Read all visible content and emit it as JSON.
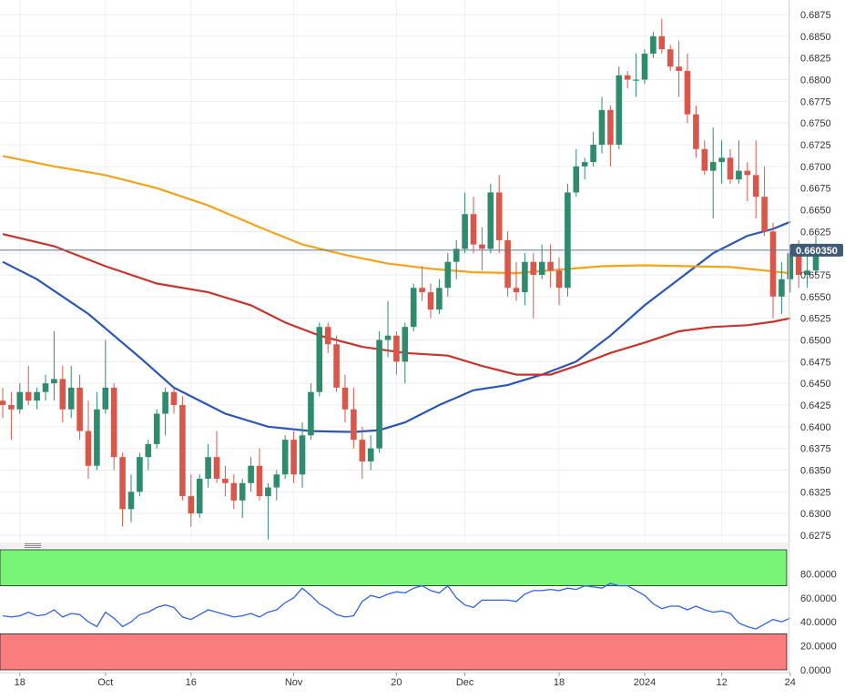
{
  "chart_data": [
    {
      "type": "candlestick",
      "title": "",
      "xlabel": "",
      "ylabel": "",
      "ylim": [
        0.6265,
        0.6885
      ],
      "y_ticks": [
        0.6275,
        0.63,
        0.6325,
        0.635,
        0.6375,
        0.64,
        0.6425,
        0.645,
        0.6475,
        0.65,
        0.6525,
        0.655,
        0.6575,
        0.66,
        0.6625,
        0.665,
        0.6675,
        0.67,
        0.6725,
        0.675,
        0.6775,
        0.68,
        0.6825,
        0.685,
        0.6875
      ],
      "y_tick_labels": [
        "0.6275",
        "0.6300",
        "0.6325",
        "0.6350",
        "0.6375",
        "0.6400",
        "0.6425",
        "0.6450",
        "0.6475",
        "0.6500",
        "0.6525",
        "0.6550",
        "0.6575",
        "0.6600",
        "0.6625",
        "0.6650",
        "0.6675",
        "0.6700",
        "0.6725",
        "0.6750",
        "0.6775",
        "0.6800",
        "0.6825",
        "0.6850",
        "0.6875"
      ],
      "x_tick_labels": [
        {
          "label": "18",
          "bar": 2
        },
        {
          "label": "Oct",
          "bar": 12
        },
        {
          "label": "16",
          "bar": 22
        },
        {
          "label": "Nov",
          "bar": 34
        },
        {
          "label": "20",
          "bar": 46
        },
        {
          "label": "Dec",
          "bar": 54
        },
        {
          "label": "18",
          "bar": 65
        },
        {
          "label": "2024",
          "bar": 75
        },
        {
          "label": "12",
          "bar": 84
        },
        {
          "label": "24",
          "bar": 92
        }
      ],
      "current_price_label": "0.660350",
      "current_price": 0.66035,
      "colors": {
        "up": "#2e8b6e",
        "down": "#d9574a",
        "sma1": "#2a56b8",
        "sma2": "#c9332c",
        "sma3": "#f5a21b",
        "price_line": "#5a7a96"
      },
      "candles": [
        [
          0.643,
          0.6445,
          0.641,
          0.6425
        ],
        [
          0.6425,
          0.644,
          0.6385,
          0.642
        ],
        [
          0.642,
          0.645,
          0.6415,
          0.644
        ],
        [
          0.644,
          0.647,
          0.6425,
          0.643
        ],
        [
          0.643,
          0.6445,
          0.642,
          0.644
        ],
        [
          0.644,
          0.646,
          0.643,
          0.645
        ],
        [
          0.645,
          0.651,
          0.643,
          0.6455
        ],
        [
          0.6455,
          0.647,
          0.6405,
          0.642
        ],
        [
          0.642,
          0.647,
          0.641,
          0.6445
        ],
        [
          0.6445,
          0.646,
          0.6385,
          0.6395
        ],
        [
          0.6395,
          0.643,
          0.634,
          0.6355
        ],
        [
          0.6355,
          0.644,
          0.635,
          0.642
        ],
        [
          0.642,
          0.65,
          0.6415,
          0.6445
        ],
        [
          0.6445,
          0.645,
          0.635,
          0.6365
        ],
        [
          0.6365,
          0.637,
          0.6285,
          0.6305
        ],
        [
          0.6305,
          0.6345,
          0.629,
          0.6325
        ],
        [
          0.6325,
          0.637,
          0.632,
          0.6365
        ],
        [
          0.6365,
          0.6385,
          0.635,
          0.638
        ],
        [
          0.638,
          0.642,
          0.6375,
          0.6415
        ],
        [
          0.6415,
          0.6445,
          0.639,
          0.644
        ],
        [
          0.644,
          0.6445,
          0.6415,
          0.6425
        ],
        [
          0.6425,
          0.6435,
          0.6315,
          0.632
        ],
        [
          0.632,
          0.6345,
          0.6285,
          0.63
        ],
        [
          0.63,
          0.6345,
          0.6295,
          0.634
        ],
        [
          0.634,
          0.638,
          0.633,
          0.6365
        ],
        [
          0.6365,
          0.6395,
          0.6335,
          0.634
        ],
        [
          0.634,
          0.6355,
          0.632,
          0.6335
        ],
        [
          0.6335,
          0.6345,
          0.6305,
          0.6315
        ],
        [
          0.6315,
          0.634,
          0.6295,
          0.6335
        ],
        [
          0.6335,
          0.6365,
          0.6325,
          0.6355
        ],
        [
          0.6355,
          0.6375,
          0.6315,
          0.632
        ],
        [
          0.632,
          0.6335,
          0.627,
          0.633
        ],
        [
          0.633,
          0.635,
          0.6315,
          0.6345
        ],
        [
          0.6345,
          0.639,
          0.634,
          0.6385
        ],
        [
          0.6385,
          0.6395,
          0.6335,
          0.6345
        ],
        [
          0.6345,
          0.6405,
          0.633,
          0.639
        ],
        [
          0.639,
          0.645,
          0.6385,
          0.644
        ],
        [
          0.644,
          0.652,
          0.6435,
          0.6515
        ],
        [
          0.6515,
          0.652,
          0.6485,
          0.6495
        ],
        [
          0.6495,
          0.6505,
          0.644,
          0.6445
        ],
        [
          0.6445,
          0.646,
          0.6405,
          0.642
        ],
        [
          0.642,
          0.6445,
          0.6375,
          0.6385
        ],
        [
          0.6385,
          0.64,
          0.634,
          0.636
        ],
        [
          0.636,
          0.639,
          0.635,
          0.6375
        ],
        [
          0.6375,
          0.651,
          0.637,
          0.65
        ],
        [
          0.65,
          0.6545,
          0.648,
          0.6505
        ],
        [
          0.6505,
          0.651,
          0.646,
          0.6475
        ],
        [
          0.6475,
          0.652,
          0.645,
          0.6515
        ],
        [
          0.6515,
          0.6565,
          0.651,
          0.656
        ],
        [
          0.656,
          0.6585,
          0.6545,
          0.6555
        ],
        [
          0.6555,
          0.6565,
          0.6525,
          0.6535
        ],
        [
          0.6535,
          0.657,
          0.653,
          0.656
        ],
        [
          0.656,
          0.66,
          0.655,
          0.659
        ],
        [
          0.659,
          0.6615,
          0.657,
          0.6605
        ],
        [
          0.6605,
          0.667,
          0.66,
          0.6645
        ],
        [
          0.6645,
          0.6665,
          0.66,
          0.661
        ],
        [
          0.661,
          0.663,
          0.658,
          0.6605
        ],
        [
          0.6605,
          0.668,
          0.66,
          0.667
        ],
        [
          0.667,
          0.669,
          0.66,
          0.6615
        ],
        [
          0.6615,
          0.6625,
          0.655,
          0.656
        ],
        [
          0.656,
          0.659,
          0.6545,
          0.6555
        ],
        [
          0.6555,
          0.66,
          0.654,
          0.659
        ],
        [
          0.659,
          0.66,
          0.6525,
          0.6575
        ],
        [
          0.6575,
          0.661,
          0.657,
          0.659
        ],
        [
          0.659,
          0.661,
          0.656,
          0.658
        ],
        [
          0.658,
          0.6595,
          0.654,
          0.656
        ],
        [
          0.656,
          0.668,
          0.655,
          0.667
        ],
        [
          0.667,
          0.672,
          0.6665,
          0.67
        ],
        [
          0.67,
          0.671,
          0.6685,
          0.6705
        ],
        [
          0.6705,
          0.674,
          0.67,
          0.6725
        ],
        [
          0.6725,
          0.678,
          0.6715,
          0.6765
        ],
        [
          0.6765,
          0.677,
          0.67,
          0.6725
        ],
        [
          0.6725,
          0.6815,
          0.672,
          0.6805
        ],
        [
          0.6805,
          0.681,
          0.679,
          0.68
        ],
        [
          0.68,
          0.683,
          0.678,
          0.68
        ],
        [
          0.68,
          0.6835,
          0.6795,
          0.683
        ],
        [
          0.683,
          0.6855,
          0.6825,
          0.685
        ],
        [
          0.685,
          0.687,
          0.683,
          0.6835
        ],
        [
          0.6835,
          0.684,
          0.681,
          0.6815
        ],
        [
          0.6815,
          0.6845,
          0.678,
          0.681
        ],
        [
          0.681,
          0.683,
          0.675,
          0.676
        ],
        [
          0.676,
          0.677,
          0.671,
          0.672
        ],
        [
          0.672,
          0.673,
          0.669,
          0.6695
        ],
        [
          0.6695,
          0.6745,
          0.664,
          0.6705
        ],
        [
          0.6705,
          0.673,
          0.668,
          0.671
        ],
        [
          0.671,
          0.672,
          0.668,
          0.6685
        ],
        [
          0.6685,
          0.673,
          0.668,
          0.6695
        ],
        [
          0.6695,
          0.6705,
          0.666,
          0.669
        ],
        [
          0.669,
          0.673,
          0.664,
          0.6665
        ],
        [
          0.6665,
          0.67,
          0.662,
          0.6625
        ],
        [
          0.6625,
          0.6635,
          0.6525,
          0.655
        ],
        [
          0.655,
          0.659,
          0.653,
          0.657
        ],
        [
          0.657,
          0.661,
          0.6555,
          0.66
        ],
        [
          0.66,
          0.6615,
          0.656,
          0.6575
        ],
        [
          0.6575,
          0.66,
          0.656,
          0.658
        ],
        [
          0.658,
          0.662,
          0.6575,
          0.66035
        ]
      ],
      "series": [
        {
          "kind": "moving-average",
          "color": "#2a56b8",
          "points": [
            [
              0,
              0.659
            ],
            [
              4,
              0.657
            ],
            [
              10,
              0.653
            ],
            [
              16,
              0.648
            ],
            [
              20,
              0.6445
            ],
            [
              26,
              0.6415
            ],
            [
              31,
              0.64
            ],
            [
              36,
              0.6395
            ],
            [
              41,
              0.6394
            ],
            [
              44,
              0.6396
            ],
            [
              47,
              0.6405
            ],
            [
              51,
              0.6425
            ],
            [
              55,
              0.6442
            ],
            [
              59,
              0.6448
            ],
            [
              63,
              0.646
            ],
            [
              67,
              0.6475
            ],
            [
              71,
              0.6505
            ],
            [
              75,
              0.654
            ],
            [
              79,
              0.657
            ],
            [
              83,
              0.66
            ],
            [
              87,
              0.662
            ],
            [
              90,
              0.6628
            ],
            [
              92,
              0.6636
            ]
          ]
        },
        {
          "kind": "moving-average",
          "color": "#c9332c",
          "points": [
            [
              0,
              0.6622
            ],
            [
              6,
              0.6608
            ],
            [
              12,
              0.6585
            ],
            [
              18,
              0.6565
            ],
            [
              24,
              0.6555
            ],
            [
              29,
              0.654
            ],
            [
              33,
              0.652
            ],
            [
              37,
              0.6505
            ],
            [
              42,
              0.6492
            ],
            [
              47,
              0.6485
            ],
            [
              52,
              0.6482
            ],
            [
              56,
              0.647
            ],
            [
              60,
              0.646
            ],
            [
              64,
              0.646
            ],
            [
              67,
              0.647
            ],
            [
              71,
              0.6485
            ],
            [
              75,
              0.6497
            ],
            [
              79,
              0.651
            ],
            [
              83,
              0.6515
            ],
            [
              87,
              0.6517
            ],
            [
              90,
              0.6521
            ],
            [
              92,
              0.6525
            ]
          ]
        },
        {
          "kind": "moving-average",
          "color": "#f5a21b",
          "points": [
            [
              0,
              0.6712
            ],
            [
              6,
              0.67
            ],
            [
              12,
              0.669
            ],
            [
              18,
              0.6675
            ],
            [
              24,
              0.6655
            ],
            [
              30,
              0.663
            ],
            [
              35,
              0.661
            ],
            [
              40,
              0.6598
            ],
            [
              45,
              0.6588
            ],
            [
              50,
              0.6582
            ],
            [
              55,
              0.6578
            ],
            [
              60,
              0.6577
            ],
            [
              65,
              0.6581
            ],
            [
              70,
              0.6585
            ],
            [
              75,
              0.6586
            ],
            [
              80,
              0.6585
            ],
            [
              85,
              0.6584
            ],
            [
              89,
              0.658
            ],
            [
              92,
              0.6577
            ]
          ]
        }
      ]
    },
    {
      "type": "line",
      "title": "",
      "xlabel": "",
      "ylabel": "",
      "ylim": [
        0,
        100
      ],
      "y_ticks": [
        0,
        20,
        40,
        60,
        80
      ],
      "y_tick_labels": [
        "0.0000",
        "20.0000",
        "40.0000",
        "60.0000",
        "80.0000"
      ],
      "bands": [
        {
          "from": 70,
          "to": 100,
          "color": "#77f577"
        },
        {
          "from": 0,
          "to": 30,
          "color": "#fb7c7c"
        }
      ],
      "series": [
        {
          "color": "#2e64e4",
          "values": [
            45,
            44,
            45,
            48,
            45,
            46,
            50,
            44,
            47,
            46,
            40,
            36,
            48,
            43,
            36,
            40,
            46,
            48,
            52,
            54,
            52,
            44,
            42,
            46,
            50,
            48,
            46,
            44,
            45,
            47,
            44,
            48,
            50,
            56,
            60,
            68,
            62,
            55,
            51,
            46,
            44,
            45,
            57,
            62,
            60,
            63,
            65,
            64,
            68,
            70,
            66,
            64,
            70,
            60,
            54,
            52,
            58,
            58,
            58,
            58,
            57,
            63,
            66,
            66,
            67,
            66,
            68,
            67,
            70,
            69,
            68,
            72,
            70,
            70,
            66,
            62,
            55,
            51,
            53,
            53,
            50,
            53,
            50,
            48,
            49,
            47,
            39,
            36,
            34,
            38,
            42,
            40,
            43
          ]
        }
      ]
    }
  ]
}
